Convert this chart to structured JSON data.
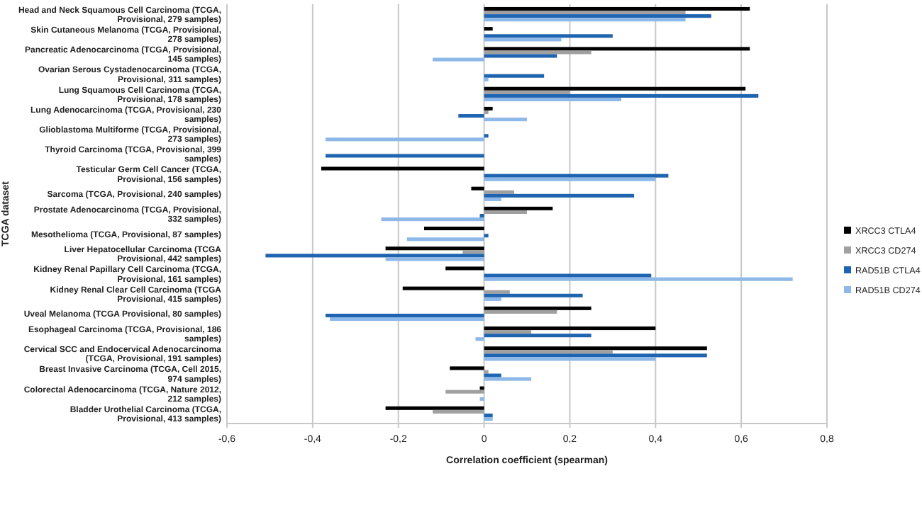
{
  "chart_data": {
    "type": "bar",
    "orientation": "horizontal",
    "ylabel": "TCGA dataset",
    "xlabel": "Correlation coefficient  (spearman)",
    "categories": [
      "Head and Neck Squamous Cell Carcinoma (TCGA, Provisional, 279 samples)",
      "Skin Cutaneous Melanoma (TCGA, Provisional, 278 samples)",
      "Pancreatic Adenocarcinoma (TCGA, Provisional, 145 samples)",
      "Ovarian Serous Cystadenocarcinoma (TCGA, Provisional, 311 samples)",
      "Lung Squamous Cell Carcinoma (TCGA, Provisional, 178 samples)",
      "Lung Adenocarcinoma (TCGA, Provisional, 230 samples)",
      "Glioblastoma Multiforme (TCGA, Provisional, 273 samples)",
      "Thyroid Carcinoma (TCGA, Provisional, 399 samples)",
      "Testicular Germ Cell Cancer (TCGA, Provisional, 156 samples)",
      "Sarcoma (TCGA, Provisional, 240 samples)",
      "Prostate Adenocarcinoma (TCGA, Provisional, 332 samples)",
      "Mesothelioma (TCGA, Provisional, 87 samples)",
      "Liver Hepatocellular Carcinoma (TCGA Provisional, 442 samples)",
      "Kidney Renal Papillary Cell Carcinoma (TCGA, Provisional, 161 samples)",
      "Kidney Renal Clear Cell Carcinoma (TCGA Provisional, 415 samples)",
      "Uveal Melanoma (TCGA Provisional, 80 samples)",
      "Esophageal Carcinoma (TCGA, Provisional, 186 samples)",
      "Cervical SCC and Endocervical Adenocarcinoma (TCGA, Provisional, 191 samples)",
      "Breast Invasive Carcinoma (TCGA, Cell 2015, 974 samples)",
      "Colorectal Adenocarcinoma (TCGA, Nature 2012, 212 samples)",
      "Bladder Urothelial Carcinoma (TCGA, Provisional, 413 samples)"
    ],
    "series": [
      {
        "name": "XRCC3 CTLA4",
        "color": "#000000",
        "values": [
          0.62,
          0.02,
          0.62,
          0,
          0.61,
          0.02,
          0,
          0,
          -0.38,
          -0.03,
          0.16,
          -0.14,
          -0.23,
          -0.09,
          -0.19,
          0.25,
          0.4,
          0.52,
          -0.08,
          -0.01,
          -0.23
        ]
      },
      {
        "name": "XRCC3 CD274",
        "color": "#a0a0a0",
        "values": [
          0.47,
          0,
          0.25,
          0,
          0.2,
          0.01,
          0,
          0,
          0,
          0.07,
          0.1,
          0,
          -0.05,
          0,
          0.06,
          0.17,
          0.11,
          0.3,
          0.01,
          -0.09,
          -0.12
        ]
      },
      {
        "name": "RAD51B CTLA4",
        "color": "#1f64b0",
        "values": [
          0.53,
          0.3,
          0.17,
          0.14,
          0.64,
          -0.06,
          0.01,
          -0.37,
          0.43,
          0.35,
          -0.01,
          0.01,
          -0.51,
          0.39,
          0.23,
          -0.37,
          0.25,
          0.52,
          0.04,
          0,
          0.02
        ]
      },
      {
        "name": "RAD51B CD274",
        "color": "#8db8e8",
        "values": [
          0.47,
          0.18,
          -0.12,
          0.01,
          0.32,
          0.1,
          -0.37,
          0,
          0.4,
          0.04,
          -0.24,
          -0.18,
          -0.23,
          0.72,
          0.04,
          -0.36,
          -0.02,
          0.4,
          0.11,
          -0.01,
          0.02
        ]
      }
    ],
    "xlim": [
      -0.6,
      0.8
    ],
    "xticks": [
      {
        "value": -0.6,
        "label": "-0,6"
      },
      {
        "value": -0.4,
        "label": "-0,4"
      },
      {
        "value": -0.2,
        "label": "-0,2"
      },
      0,
      {
        "value": 0.2,
        "label": "0,2"
      },
      {
        "value": 0.4,
        "label": "0,4"
      },
      {
        "value": 0.6,
        "label": "0,6"
      },
      {
        "value": 0.8,
        "label": "0,8"
      }
    ],
    "grid": "x",
    "legend": "right"
  }
}
